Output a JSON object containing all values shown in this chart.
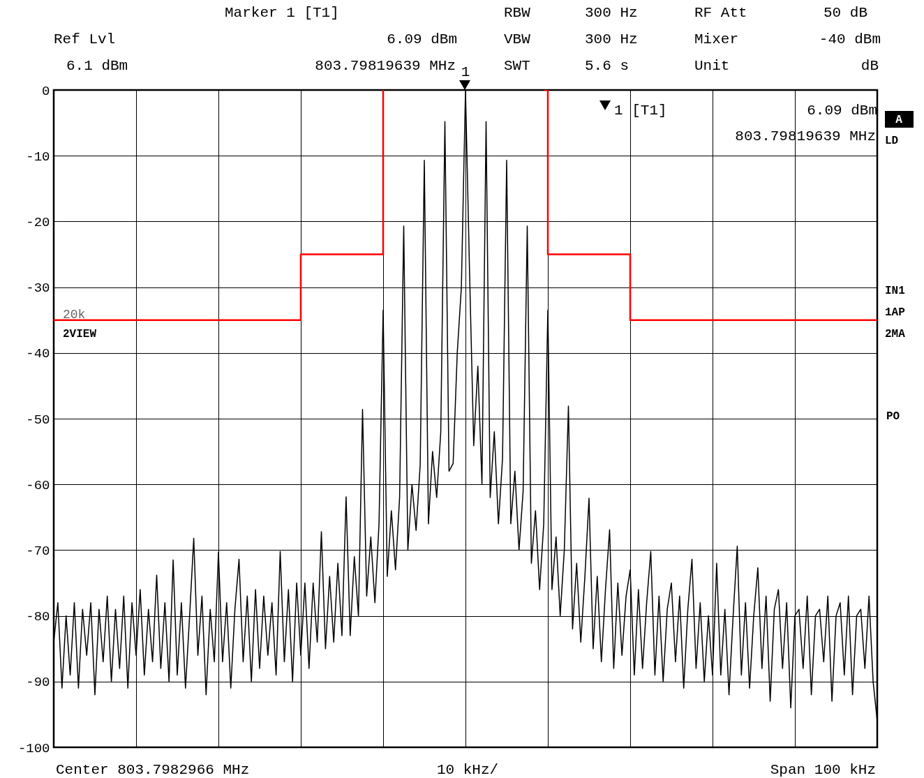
{
  "chart_data": {
    "type": "line",
    "ylim": [
      -100,
      0
    ],
    "categories": [
      null,
      null,
      null,
      null,
      null,
      null,
      null,
      null,
      null,
      null,
      null,
      null,
      null,
      null,
      null,
      null,
      null,
      null,
      null,
      null,
      null,
      null,
      null,
      null,
      null,
      null,
      null,
      null,
      null,
      null,
      null,
      null,
      null,
      null,
      null,
      null,
      null,
      null,
      null,
      null,
      null,
      null,
      null,
      null,
      null,
      null,
      null,
      null,
      null,
      null,
      null,
      null,
      null,
      null,
      null,
      null,
      null,
      null,
      null,
      null,
      null,
      null,
      null,
      null,
      null,
      null,
      null,
      null,
      null,
      null,
      null,
      null,
      null,
      null,
      null,
      null,
      null,
      null,
      null,
      null,
      null,
      null,
      null,
      null,
      null,
      null,
      null,
      null,
      null,
      null,
      null,
      null,
      null,
      null,
      null,
      null,
      null,
      null,
      null,
      null,
      null,
      null,
      null,
      null,
      null,
      null,
      null,
      null,
      null,
      null,
      null,
      null,
      null,
      null,
      null,
      null,
      null,
      null,
      null,
      null,
      null,
      null,
      null,
      null,
      null,
      null,
      null,
      null,
      null,
      null,
      null,
      null,
      null,
      null,
      null,
      null,
      null,
      null,
      null,
      null,
      null,
      null,
      null,
      null,
      null,
      null,
      null,
      null,
      null,
      null,
      null,
      null,
      null,
      null,
      null,
      null,
      null,
      null,
      null,
      null,
      null,
      null,
      null,
      null,
      null,
      null,
      null,
      null,
      null,
      null,
      null,
      null,
      null,
      null,
      null,
      null,
      null,
      null,
      null,
      null,
      null,
      null,
      null,
      null,
      null,
      null,
      null,
      null,
      null,
      null,
      null,
      null,
      null,
      null,
      null,
      null,
      null,
      null,
      null,
      null,
      null
    ],
    "yticks": [
      0,
      -10,
      -20,
      -30,
      -40,
      -50,
      -60,
      -70,
      -80,
      -90,
      -100
    ],
    "grid": true,
    "tick_labels": "y",
    "series": [
      {
        "color": "#000000",
        "values": [
          -84,
          -78,
          -91,
          -80,
          -89,
          -78,
          -91,
          -79,
          -86,
          -78,
          -92,
          -79,
          -87,
          -77,
          -90,
          -79,
          -88,
          -77,
          -91,
          -78,
          -86,
          -76,
          -89,
          -79,
          -87,
          -73.8,
          -88,
          -78,
          -90,
          -71.5,
          -89,
          -78,
          -91,
          -80,
          -68.2,
          -86,
          -77,
          -92,
          -79,
          -87,
          -70.3,
          -87,
          -78,
          -91,
          -79,
          -71.4,
          -87,
          -77,
          -90,
          -76,
          -88,
          -77,
          -86,
          -78,
          -89,
          -70.2,
          -87,
          -76,
          -90,
          -75,
          -86,
          -75,
          -88,
          -75,
          -84,
          -67.2,
          -85,
          -74,
          -84,
          -72,
          -83,
          -61.9,
          -83,
          -71,
          -80,
          -48.6,
          -77,
          -68,
          -78,
          -66,
          -33.5,
          -74,
          -64,
          -73,
          -62,
          -20.7,
          -70,
          -60,
          -67,
          -57,
          -10.7,
          -66,
          -55,
          -62,
          -52,
          -4.8,
          -58,
          -56.8,
          -40,
          -30,
          0,
          -28,
          -54.1,
          -42,
          -60,
          -4.8,
          -62,
          -52,
          -66,
          -56,
          -10.7,
          -66,
          -58,
          -70,
          -61,
          -20.7,
          -72,
          -64,
          -76,
          -66,
          -33.5,
          -76,
          -68,
          -80,
          -70,
          -48.1,
          -82,
          -72,
          -84,
          -74,
          -62.1,
          -85,
          -74,
          -87,
          -76,
          -66.9,
          -88,
          -75,
          -86,
          -77,
          -73,
          -89,
          -76,
          -88,
          -78,
          -70.2,
          -89,
          -77,
          -90,
          -79,
          -75,
          -87,
          -77,
          -91,
          -79,
          -71.4,
          -88,
          -78,
          -90,
          -80,
          -89,
          -72,
          -89,
          -79,
          -92,
          -80,
          -69.4,
          -89,
          -78,
          -91,
          -80,
          -72.7,
          -88,
          -77,
          -93,
          -79,
          -76,
          -88,
          -78,
          -94,
          -80,
          -79,
          -88,
          -77,
          -92,
          -80,
          -79,
          -87,
          -77,
          -93,
          -80,
          -78,
          -89,
          -77,
          -92,
          -80,
          -79,
          -88,
          -77,
          -90,
          -96
        ]
      },
      {
        "color": "#ff0000",
        "type": "step",
        "values": [
          -35,
          -35,
          -35,
          -35,
          -35,
          -35,
          -35,
          -35,
          -35,
          -35,
          -35,
          -35,
          -35,
          -35,
          -35,
          -35,
          -35,
          -35,
          -35,
          -35,
          -35,
          -35,
          -35,
          -35,
          -35,
          -35,
          -35,
          -35,
          -35,
          -35,
          -35,
          -35,
          -35,
          -35,
          -35,
          -35,
          -35,
          -35,
          -35,
          -35,
          -35,
          -35,
          -35,
          -35,
          -35,
          -35,
          -35,
          -35,
          -35,
          -35,
          -35,
          -35,
          -35,
          -35,
          -35,
          -35,
          -35,
          -35,
          -35,
          -35,
          -25,
          -25,
          -25,
          -25,
          -25,
          -25,
          -25,
          -25,
          -25,
          -25,
          -25,
          -25,
          -25,
          -25,
          -25,
          -25,
          -25,
          -25,
          -25,
          -25,
          0,
          null,
          null,
          null,
          null,
          null,
          null,
          null,
          null,
          null,
          null,
          null,
          null,
          null,
          null,
          null,
          null,
          null,
          null,
          null,
          null,
          null,
          null,
          null,
          null,
          null,
          null,
          null,
          null,
          null,
          null,
          null,
          null,
          null,
          null,
          null,
          null,
          null,
          null,
          0,
          -25,
          -25,
          -25,
          -25,
          -25,
          -25,
          -25,
          -25,
          -25,
          -25,
          -25,
          -25,
          -25,
          -25,
          -25,
          -25,
          -25,
          -25,
          -25,
          -25,
          -35,
          -35,
          -35,
          -35,
          -35,
          -35,
          -35,
          -35,
          -35,
          -35,
          -35,
          -35,
          -35,
          -35,
          -35,
          -35,
          -35,
          -35,
          -35,
          -35,
          -35,
          -35,
          -35,
          -35,
          -35,
          -35,
          -35,
          -35,
          -35,
          -35,
          -35,
          -35,
          -35,
          -35,
          -35,
          -35,
          -35,
          -35,
          -35,
          -35,
          -35,
          -35,
          -35,
          -35,
          -35,
          -35,
          -35,
          -35,
          -35,
          -35,
          -35,
          -35,
          -35,
          -35,
          -35,
          -35,
          -35,
          -35,
          -35,
          -35,
          -35
        ]
      }
    ],
    "annotations": [
      "Marker 1 [T1]",
      "RBW",
      "300 Hz",
      "RF Att",
      "50 dB",
      "Ref Lvl",
      "6.09 dBm",
      "VBW",
      "300 Hz",
      "Mixer",
      "-40 dBm",
      "6.1 dBm",
      "803.79819639 MHz",
      "SWT",
      "5.6 s",
      "Unit",
      "dB",
      "1 [T1]",
      "6.09 dBm",
      "803.79819639 MHz",
      "A",
      "LD",
      "IN1",
      "1AP",
      "2MA",
      "PO",
      "20k",
      "2VIEW",
      "Center 803.7982966 MHz",
      "10 kHz/",
      "Span 100 kHz",
      "1"
    ]
  }
}
